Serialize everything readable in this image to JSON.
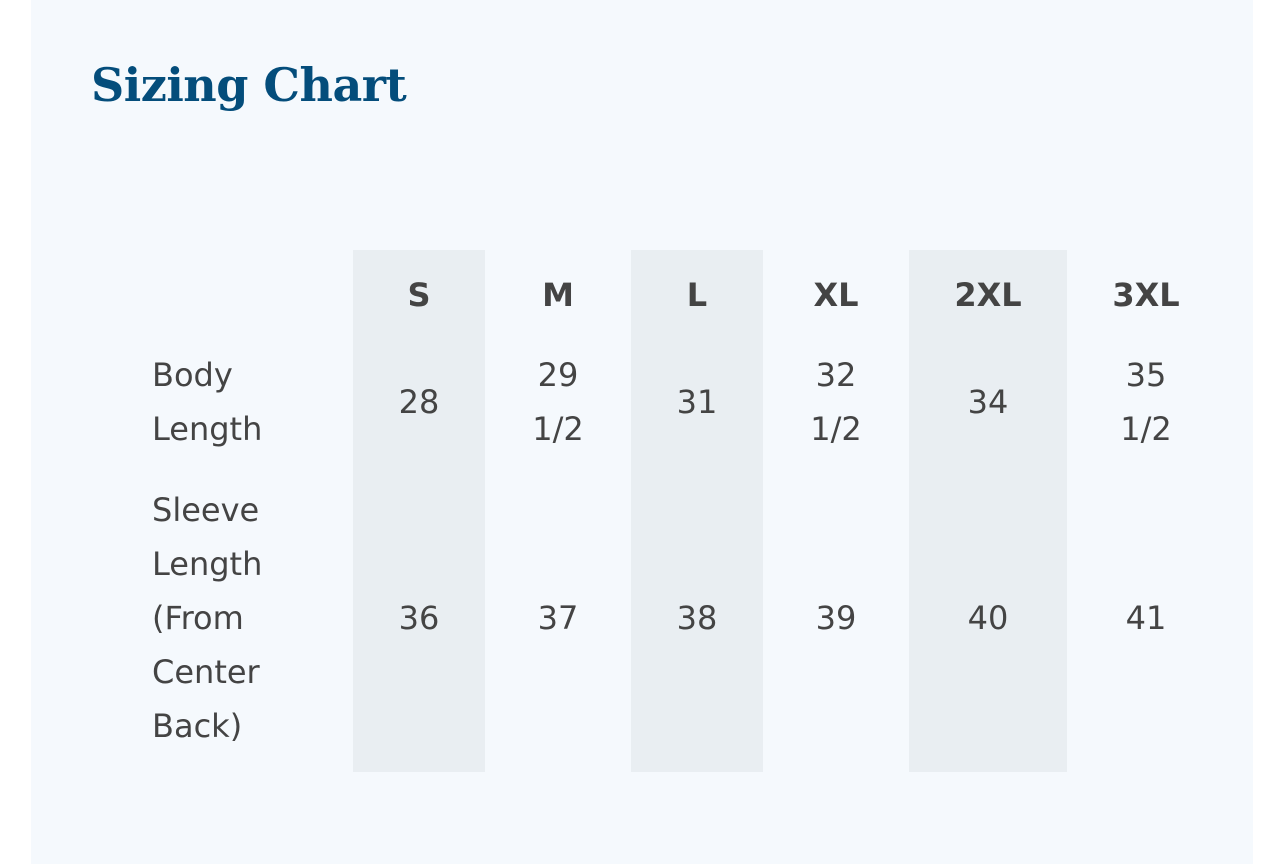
{
  "title": "Sizing Chart",
  "columns": [
    "",
    "S",
    "M",
    "L",
    "XL",
    "2XL",
    "3XL"
  ],
  "rows": [
    {
      "label": "Body Length",
      "values": [
        "28",
        "29 1/2",
        "31",
        "32 1/2",
        "34",
        "35 1/2"
      ]
    },
    {
      "label": "Sleeve Length (From Center Back)",
      "values": [
        "36",
        "37",
        "38",
        "39",
        "40",
        "41"
      ]
    }
  ],
  "colors": {
    "title": "#044d7b",
    "background": "#f5f9fd",
    "shaded_column": "#e9eef2",
    "text": "#444444"
  }
}
